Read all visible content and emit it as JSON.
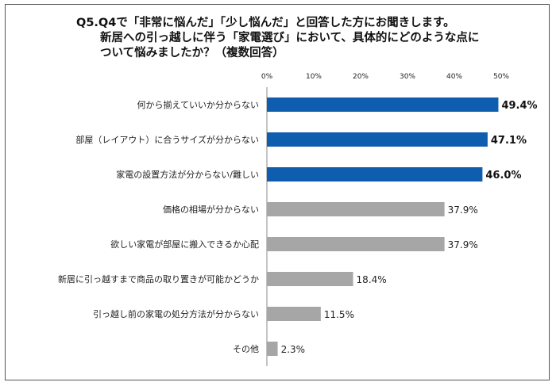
{
  "chart_data": {
    "type": "bar",
    "orientation": "horizontal",
    "title_lines": [
      "Q5.Q4で「非常に悩んだ」「少し悩んだ」と回答した方にお聞きします。",
      "新居への引っ越しに伴う「家電選び」において、具体的にどのような点に",
      "ついて悩みましたか？（複数回答）"
    ],
    "xlim": [
      0,
      50
    ],
    "ticks": [
      "0%",
      "10%",
      "20%",
      "30%",
      "40%",
      "50%"
    ],
    "tick_values": [
      0,
      10,
      20,
      30,
      40,
      50
    ],
    "grid": false,
    "categories": [
      "何から揃えていいか分からない",
      "部屋（レイアウト）に合うサイズが分からない",
      "家電の設置方法が分からない/難しい",
      "価格の相場が分からない",
      "欲しい家電が部屋に搬入できるか心配",
      "新居に引っ越すまで商品の取り置きが可能かどうか",
      "引っ越し前の家電の処分方法が分からない",
      "その他"
    ],
    "values": [
      49.4,
      47.1,
      46.0,
      37.9,
      37.9,
      18.4,
      11.5,
      2.3
    ],
    "value_labels": [
      "49.4%",
      "47.1%",
      "46.0%",
      "37.9%",
      "37.9%",
      "18.4%",
      "11.5%",
      "2.3%"
    ],
    "highlight_count": 3,
    "colors": {
      "highlight": "#0F5DAF",
      "normal": "#A6A6A6",
      "axis": "#888888"
    }
  }
}
